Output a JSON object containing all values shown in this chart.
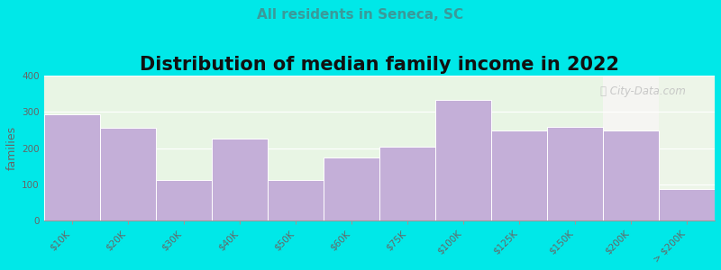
{
  "title": "Distribution of median family income in 2022",
  "subtitle": "All residents in Seneca, SC",
  "ylabel": "families",
  "categories": [
    "$10K",
    "$20K",
    "$30K",
    "$40K",
    "$50K",
    "$60K",
    "$75K",
    "$100K",
    "$125K",
    "$150K",
    "$200K",
    "> $200K"
  ],
  "values": [
    293,
    255,
    113,
    227,
    113,
    175,
    203,
    333,
    248,
    258,
    248,
    88
  ],
  "bar_color": "#c4afd8",
  "bar_edge_color": "#ffffff",
  "background_outer": "#00e8e8",
  "bg_left_color": "#e8f5e4",
  "bg_right_color": "#f5f5f2",
  "bg_last_color": "#edf5e8",
  "ylim": [
    0,
    400
  ],
  "yticks": [
    0,
    100,
    200,
    300,
    400
  ],
  "title_fontsize": 15,
  "subtitle_fontsize": 11,
  "subtitle_color": "#3a9a9a",
  "ylabel_fontsize": 9,
  "tick_fontsize": 7.5,
  "watermark": "City-Data.com",
  "n_bars": 12,
  "split_at": 10
}
